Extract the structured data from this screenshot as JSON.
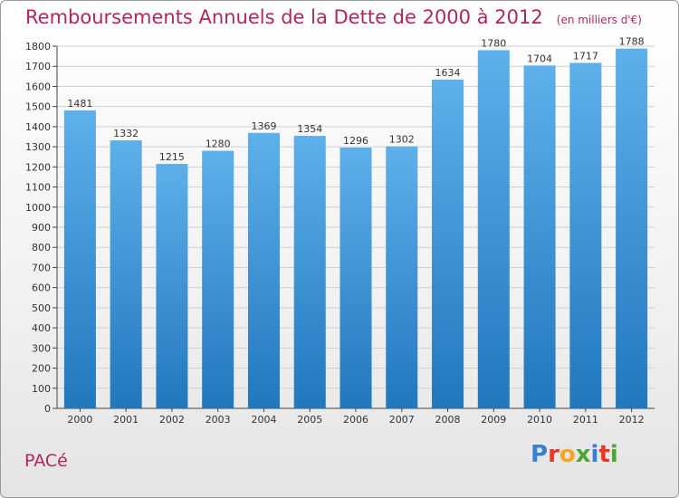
{
  "title": "Remboursements Annuels de la Dette de 2000 à 2012",
  "subtitle": "(en milliers d'€)",
  "commune": "PACé",
  "logo": {
    "text": "Proxiti",
    "letters": [
      {
        "char": "P",
        "color": "#3b7fd0"
      },
      {
        "char": "r",
        "color": "#e8382b"
      },
      {
        "char": "o",
        "color": "#f5a623"
      },
      {
        "char": "x",
        "color": "#4aa832"
      },
      {
        "char": "i",
        "color": "#3b7fd0"
      },
      {
        "char": "t",
        "color": "#e8382b"
      },
      {
        "char": "i",
        "color": "#4aa832"
      }
    ]
  },
  "colors": {
    "title": "#b0265e",
    "bar_top": "#5eb0ea",
    "bar_bottom": "#2277bd",
    "grid": "#d0d0d0",
    "axis": "#444444"
  },
  "chart_data": {
    "type": "bar",
    "title": "Remboursements Annuels de la Dette de 2000 à 2012",
    "subtitle": "(en milliers d'€)",
    "categories": [
      "2000",
      "2001",
      "2002",
      "2003",
      "2004",
      "2005",
      "2006",
      "2007",
      "2008",
      "2009",
      "2010",
      "2011",
      "2012"
    ],
    "values": [
      1481,
      1332,
      1215,
      1280,
      1369,
      1354,
      1296,
      1302,
      1634,
      1780,
      1704,
      1717,
      1788
    ],
    "ylim": [
      0,
      1800
    ],
    "yticks": [
      0,
      100,
      200,
      300,
      400,
      500,
      600,
      700,
      800,
      900,
      1000,
      1100,
      1200,
      1300,
      1400,
      1500,
      1600,
      1700,
      1800
    ],
    "grid": true,
    "xlabel": "",
    "ylabel": ""
  }
}
